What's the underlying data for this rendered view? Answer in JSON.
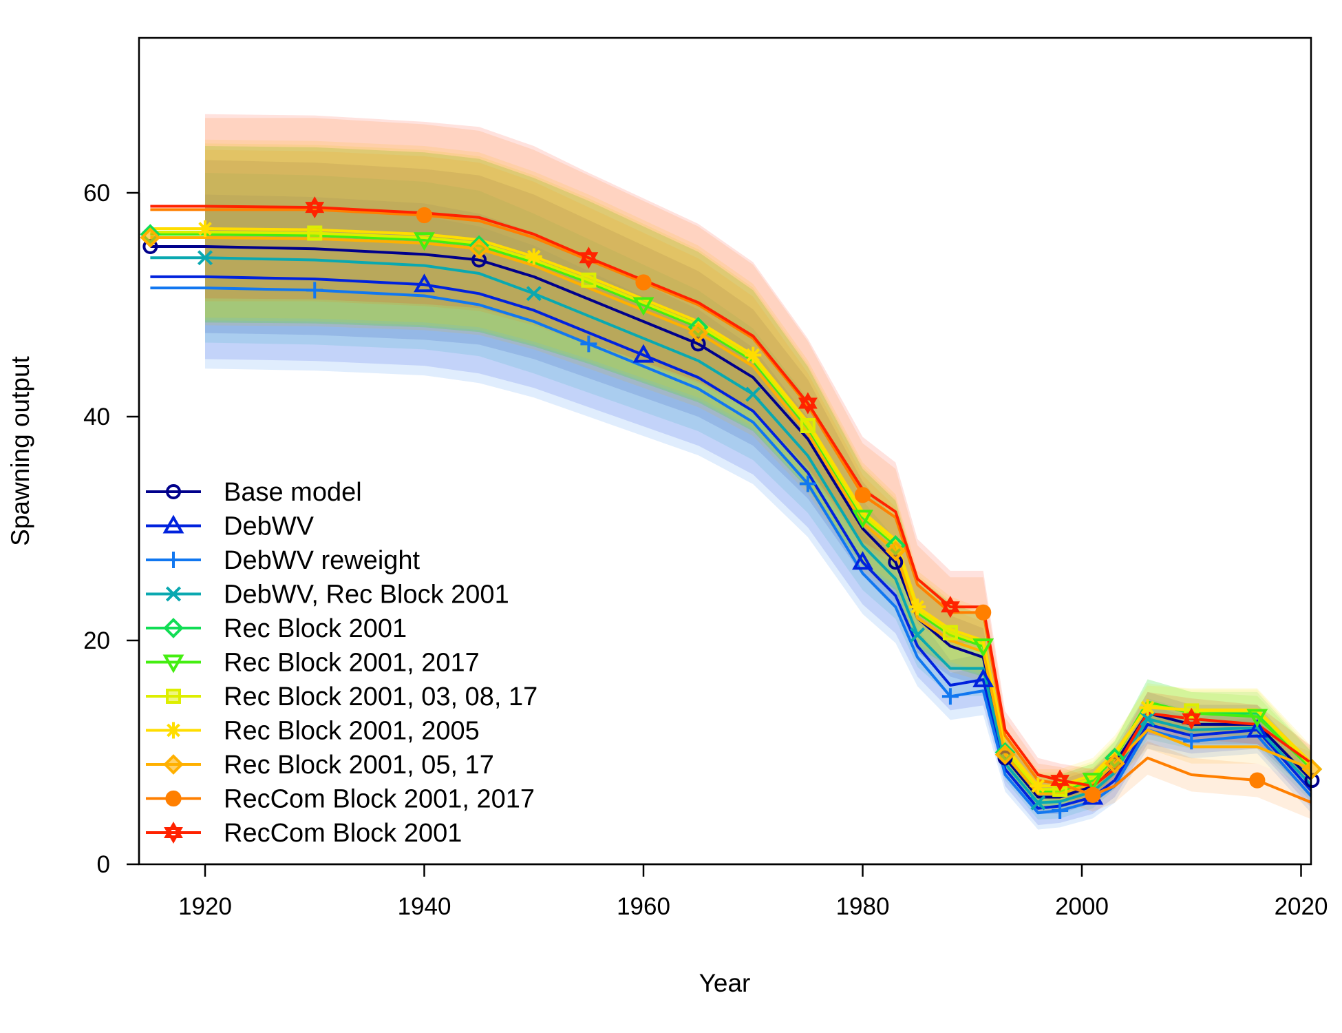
{
  "chart_data": {
    "type": "line",
    "title": "",
    "xlabel": "Year",
    "ylabel": "Spawning output",
    "xlim": [
      1914,
      2021
    ],
    "ylim": [
      0,
      60
    ],
    "x_ticks": [
      1920,
      1940,
      1960,
      1980,
      2000,
      2020
    ],
    "y_ticks": [
      0,
      20,
      40,
      60
    ],
    "grid": false,
    "legend_position": "bottom-left",
    "x": [
      1915,
      1920,
      1930,
      1940,
      1945,
      1950,
      1955,
      1960,
      1965,
      1970,
      1975,
      1980,
      1983,
      1985,
      1988,
      1991,
      1993,
      1996,
      1998,
      2001,
      2003,
      2006,
      2010,
      2016,
      2021
    ],
    "series": [
      {
        "name": "Base model",
        "color": "#00008B",
        "marker": "circle",
        "values": [
          55.2,
          55.2,
          55.0,
          54.5,
          54.0,
          52.5,
          50.5,
          48.5,
          46.5,
          43.5,
          38.0,
          30.0,
          27.0,
          22.0,
          19.5,
          18.5,
          9.5,
          6.0,
          6.0,
          7.0,
          9.0,
          13.5,
          12.5,
          12.5,
          7.5
        ]
      },
      {
        "name": "DebWV",
        "color": "#0022DD",
        "marker": "triangle",
        "values": [
          52.5,
          52.5,
          52.3,
          51.8,
          51.0,
          49.5,
          47.5,
          45.5,
          43.5,
          40.5,
          35.0,
          27.0,
          24.0,
          19.5,
          16.0,
          16.5,
          8.5,
          5.0,
          5.2,
          6.0,
          7.5,
          12.5,
          11.5,
          12.0,
          6.5
        ]
      },
      {
        "name": "DebWV reweight",
        "color": "#1177F0",
        "marker": "plus",
        "values": [
          51.5,
          51.5,
          51.3,
          50.8,
          50.0,
          48.5,
          46.5,
          44.5,
          42.5,
          39.5,
          34.0,
          26.0,
          23.0,
          18.5,
          15.0,
          15.5,
          8.0,
          4.6,
          4.8,
          5.6,
          7.0,
          12.0,
          11.0,
          11.5,
          6.0
        ]
      },
      {
        "name": "DebWV, Rec Block 2001",
        "color": "#0AA8B0",
        "marker": "cross",
        "values": [
          54.2,
          54.2,
          54.0,
          53.5,
          52.8,
          51.0,
          49.0,
          47.0,
          45.0,
          42.0,
          36.5,
          28.5,
          25.5,
          20.5,
          17.5,
          17.5,
          9.0,
          5.5,
          5.6,
          6.5,
          8.2,
          13.0,
          12.0,
          12.2,
          7.0
        ]
      },
      {
        "name": "Rec Block 2001",
        "color": "#11DD55",
        "marker": "diamond",
        "values": [
          56.3,
          56.3,
          56.2,
          55.8,
          55.3,
          53.8,
          52.0,
          50.0,
          48.0,
          45.0,
          39.0,
          31.0,
          28.5,
          22.5,
          20.5,
          19.5,
          10.0,
          6.5,
          6.5,
          7.5,
          9.5,
          14.5,
          13.5,
          13.5,
          8.5
        ]
      },
      {
        "name": "Rec Block 2001, 2017",
        "color": "#44EE11",
        "marker": "triangle-down",
        "values": [
          56.3,
          56.3,
          56.2,
          55.8,
          55.3,
          53.8,
          52.0,
          50.0,
          48.0,
          45.0,
          39.0,
          31.0,
          28.5,
          22.5,
          20.5,
          19.5,
          10.0,
          6.5,
          6.5,
          7.5,
          9.5,
          14.5,
          13.5,
          13.2,
          8.5
        ]
      },
      {
        "name": "Rec Block 2001, 03, 08, 17",
        "color": "#DDEE00",
        "marker": "square",
        "values": [
          56.5,
          56.5,
          56.4,
          56.0,
          55.5,
          54.0,
          52.2,
          50.2,
          48.2,
          45.2,
          39.2,
          31.2,
          28.7,
          22.7,
          20.7,
          19.7,
          10.2,
          6.7,
          6.7,
          7.7,
          9.7,
          14.2,
          13.7,
          13.7,
          8.7
        ]
      },
      {
        "name": "Rec Block 2001, 2005",
        "color": "#FFDD00",
        "marker": "asterisk",
        "values": [
          56.8,
          56.8,
          56.7,
          56.3,
          55.8,
          54.3,
          52.5,
          50.5,
          48.5,
          45.5,
          39.5,
          31.5,
          29.0,
          23.0,
          21.0,
          20.0,
          10.5,
          7.0,
          7.0,
          8.0,
          10.0,
          14.0,
          13.8,
          13.8,
          9.0
        ]
      },
      {
        "name": "Rec Block 2001, 05, 17",
        "color": "#FFB000",
        "marker": "diamond-plus",
        "values": [
          56.0,
          56.0,
          55.9,
          55.5,
          55.0,
          53.5,
          51.5,
          49.5,
          47.5,
          44.5,
          38.5,
          30.5,
          28.0,
          22.0,
          20.0,
          19.0,
          9.8,
          6.3,
          6.3,
          7.2,
          9.0,
          12.0,
          10.5,
          10.5,
          8.5
        ]
      },
      {
        "name": "RecCom Block 2001, 2017",
        "color": "#FF7F00",
        "marker": "filled-circle",
        "values": [
          58.5,
          58.5,
          58.5,
          58.0,
          57.5,
          56.0,
          54.0,
          52.0,
          50.0,
          47.0,
          41.0,
          33.0,
          31.0,
          25.0,
          22.5,
          22.5,
          11.5,
          7.5,
          7.2,
          6.2,
          7.0,
          9.5,
          8.0,
          7.5,
          5.5
        ]
      },
      {
        "name": "RecCom Block 2001",
        "color": "#FF2200",
        "marker": "star6",
        "values": [
          58.8,
          58.8,
          58.7,
          58.2,
          57.8,
          56.3,
          54.2,
          52.2,
          50.2,
          47.2,
          41.2,
          33.5,
          31.5,
          25.5,
          23.0,
          23.0,
          12.0,
          8.0,
          7.5,
          7.0,
          8.5,
          13.5,
          13.0,
          12.5,
          9.0
        ]
      }
    ]
  }
}
